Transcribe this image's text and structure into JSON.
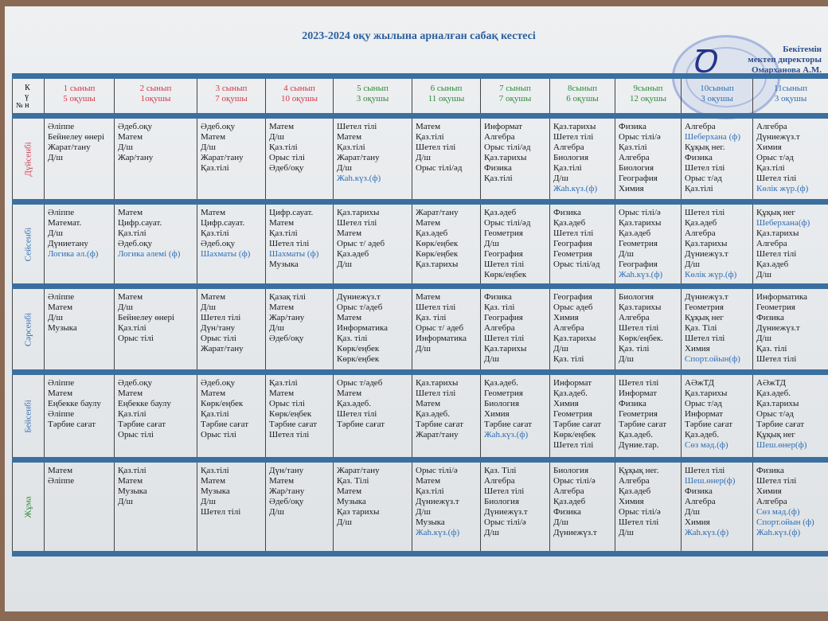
{
  "title": "2023-2024 оқу жылына арналған сабақ кестесі",
  "approval": [
    "Бекітемін",
    "мектеп директоры",
    "Омарханова А.М."
  ],
  "corner": {
    "num": "№",
    "day": "Күн"
  },
  "colors": {
    "red": "#d1394a",
    "green": "#2f8a3a",
    "blue": "#2e6db3",
    "bar": "#3a6fa0"
  },
  "classes": [
    {
      "name": "1 сынып",
      "students": "5 оқушы",
      "color": "#d1394a"
    },
    {
      "name": "2 сынып",
      "students": "1оқушы",
      "color": "#d1394a"
    },
    {
      "name": "3 сынып",
      "students": "7 оқушы",
      "color": "#d1394a"
    },
    {
      "name": "4 сынып",
      "students": "10 оқушы",
      "color": "#d1394a"
    },
    {
      "name": "5 сынып",
      "students": "3 оқушы",
      "color": "#2f8a3a"
    },
    {
      "name": "6 сынып",
      "students": "11 оқушы",
      "color": "#2f8a3a"
    },
    {
      "name": "7 сынып",
      "students": "7 оқушы",
      "color": "#2f8a3a"
    },
    {
      "name": "8сынып",
      "students": "6 оқушы",
      "color": "#2f8a3a"
    },
    {
      "name": "9сынып",
      "students": "12 оқушы",
      "color": "#2f8a3a"
    },
    {
      "name": "10сынып",
      "students": "3 оқушы",
      "color": "#2e6db3"
    },
    {
      "name": "11сынып",
      "students": "3 оқушы",
      "color": "#2e6db3"
    }
  ],
  "days": [
    {
      "name": "Дүйсенбі",
      "color": "#d1394a",
      "cells": [
        [
          "Әліппе",
          "Бейнелеу өнері",
          "Жарат/тану",
          "Д/ш"
        ],
        [
          "Әдеб.оқу",
          "Матем",
          "Д/ш",
          "Жар/тану"
        ],
        [
          "Әдеб.оқу",
          "Матем",
          "Д/ш",
          "Жарат/тану",
          "Қаз.тілі"
        ],
        [
          "Матем",
          "Д/ш",
          "Қаз.тілі",
          "Орыс тілі",
          "Әдеб/оқу"
        ],
        [
          "Шетел тілі",
          "Матем",
          "Қаз.тілі",
          "Жарат/тану",
          "Д/ш",
          "Жаh.күз.(ф)"
        ],
        [
          "Матем",
          "Қаз.тілі",
          "Шетел тілі",
          "Д/ш",
          "Орыс тілі/әд"
        ],
        [
          "Информат",
          "Алгебра",
          "Орыс тілі/әд",
          "Қаз.тарихы",
          "Физика",
          "Қаз.тілі"
        ],
        [
          "Қаз.тарихы",
          "Шетел тілі",
          "Алгебра",
          "Биология",
          "Қаз.тілі",
          "Д/ш",
          "Жаh.күз.(ф)"
        ],
        [
          "Физика",
          "Орыс тілі/ә",
          "Қаз.тілі",
          "Алгебра",
          "Биология",
          "География",
          "Химия"
        ],
        [
          "Алгебра",
          "Шеберхана (ф)",
          "Құқық нег.",
          "Физика",
          "Шетел тілі",
          "Орыс т/әд",
          "Қаз.тілі"
        ],
        [
          "Алгебра",
          "Дүниежүз.т",
          "Химия",
          "Орыс т/әд",
          "Қаз.тілі",
          "Шетел тілі",
          "Көлік жүр.(ф)"
        ]
      ]
    },
    {
      "name": "Сейсенбі",
      "color": "#2e6db3",
      "cells": [
        [
          "Әліппе",
          "Математ.",
          "Д/ш",
          "Дүниетану",
          "Логика әл.(ф)"
        ],
        [
          "Матем",
          "Цифр.сауат.",
          "Қаз.тілі",
          "Әдеб.оқу",
          "Логика әлемі (ф)"
        ],
        [
          "Матем",
          "Цифр.сауат.",
          "Қаз.тілі",
          "Әдеб.оқу",
          "Шахматы (ф)"
        ],
        [
          "Цифр.сауат.",
          "Матем",
          "Қаз.тілі",
          "Шетел тілі",
          "Шахматы (ф)",
          "Музыка"
        ],
        [
          "Қаз.тарихы",
          "Шетел тілі",
          "Матем",
          "Орыс т/ әдеб",
          "Қаз.әдеб",
          "Д/ш"
        ],
        [
          "Жарат/тану",
          "Матем",
          "Қаз.әдеб",
          "Көрк/еңбек",
          "Көрк/еңбек",
          "Қаз.тарихы"
        ],
        [
          "Қаз.әдеб",
          "Орыс тілі/әд",
          "Геометрия",
          "Д/ш",
          "География",
          "Шетел тілі",
          "Көрк/еңбек"
        ],
        [
          "Физика",
          "Қаз.әдеб",
          "Шетел тілі",
          "География",
          "Геометрия",
          "Орыс тілі/әд"
        ],
        [
          "Орыс тілі/ә",
          "Қаз.тарихы",
          "Қаз.әдеб",
          "Геометрия",
          "Д/ш",
          "География",
          "Жаh.күз.(ф)"
        ],
        [
          "Шетел тілі",
          "Қаз.әдеб",
          "Алгебра",
          "Қаз.тарихы",
          "Дүниежүз.т",
          "Д/ш",
          "Көлік жүр.(ф)"
        ],
        [
          "Құқық нег",
          "Шеберхана(ф)",
          "Қаз.тарихы",
          "Алгебра",
          "Шетел тілі",
          "Қаз.әдеб",
          "Д/ш"
        ]
      ]
    },
    {
      "name": "Сәрсенбі",
      "color": "#2e6db3",
      "cells": [
        [
          "Әліппе",
          "Матем",
          "Д/ш",
          "Музыка"
        ],
        [
          "Матем",
          "Д/ш",
          "Бейнелеу өнері",
          "Қаз.тілі",
          "Орыс тілі"
        ],
        [
          "Матем",
          "Д/ш",
          "Шетел тілі",
          "Дүн/тану",
          "Орыс тілі",
          "Жарат/тану"
        ],
        [
          "Қазақ тілі",
          "Матем",
          "Жар/тану",
          "Д/ш",
          "Әдеб/оқу"
        ],
        [
          "Дүниежүз.т",
          "Орыс т/әдеб",
          "Матем",
          "Информатика",
          "Қаз. тілі",
          "Көрк/еңбек",
          "Көрк/еңбек"
        ],
        [
          "Матем",
          "Шетел тілі",
          "Қаз. тілі",
          "Орыс т/ әдеб",
          "Информатика",
          "Д/ш"
        ],
        [
          "Физика",
          "Қаз. тілі",
          "География",
          "Алгебра",
          "Шетел тілі",
          "Қаз.тарихы",
          "Д/ш"
        ],
        [
          "География",
          "Орыс әдеб",
          "Химия",
          "Алгебра",
          "Қаз.тарихы",
          "Д/ш",
          "Қаз. тілі"
        ],
        [
          "Биология",
          "Қаз.тарихы",
          "Алгебра",
          "Шетел тілі",
          "Көрк/еңбек.",
          "Қаз. тілі",
          "Д/ш"
        ],
        [
          "Дүниежүз.т",
          "Геометрия",
          "Құқық нег",
          "Қаз. Тілі",
          "Шетел тілі",
          "Химия",
          "Спорт.ойын(ф)"
        ],
        [
          "Информатика",
          "Геометрия",
          "Физика",
          "Дүниежүз.т",
          "Д/ш",
          "Қаз. тілі",
          "Шетел тілі"
        ]
      ]
    },
    {
      "name": "Бейсенбі",
      "color": "#2e6db3",
      "cells": [
        [
          "Әліппе",
          "Матем",
          "Еңбекке баулу",
          "Әліппе",
          "Тәрбие сағат"
        ],
        [
          "Әдеб.оқу",
          "Матем",
          "Еңбекке баулу",
          "Қаз.тілі",
          "Тәрбие сағат",
          "Орыс тілі"
        ],
        [
          "Әдеб.оқу",
          "Матем",
          "Көрк/еңбек",
          "Қаз.тілі",
          "Тәрбие сағат",
          "Орыс тілі"
        ],
        [
          "Қаз.тілі",
          "Матем",
          "Орыс тілі",
          "Көрк/еңбек",
          "Тәрбие сағат",
          "Шетел тілі"
        ],
        [
          "Орыс т/әдеб",
          "Матем",
          "Қаз.әдеб.",
          "Шетел тілі",
          "Тәрбие сағат"
        ],
        [
          "Қаз.тарихы",
          "Шетел тілі",
          "Матем",
          "Қаз.әдеб.",
          "Тәрбие сағат",
          "Жарат/тану"
        ],
        [
          "Қаз.әдеб.",
          "Геометрия",
          "Биология",
          "Химия",
          "Тәрбие сағат",
          "Жаh.күз.(ф)"
        ],
        [
          "Информат",
          "Қаз.әдеб.",
          "Химия",
          "Геометрия",
          "Тәрбие сағат",
          "Көрк/еңбек",
          "Шетел тілі"
        ],
        [
          "Шетел тілі",
          "Информат",
          "Физика",
          "Геометрия",
          "Тәрбие сағат",
          "Қаз.әдеб.",
          "Дүние.тар."
        ],
        [
          "АӘжТД",
          "Қаз.тарихы",
          "Орыс т/әд",
          "Информат",
          "Тәрбие сағат",
          "Қаз.әдеб.",
          "Сөз мәд.(ф)"
        ],
        [
          "АӘжТД",
          "Қаз.әдеб.",
          "Қаз.тарихы",
          "Орыс т/әд",
          "Тәрбие сағат",
          "Құқық нег",
          "Шеш.өнер(ф)"
        ]
      ]
    },
    {
      "name": "Жұма",
      "color": "#2f8a3a",
      "cells": [
        [
          "Матем",
          "Әліппе"
        ],
        [
          "Қаз.тілі",
          "Матем",
          "Музыка",
          "Д/ш"
        ],
        [
          "Қаз.тілі",
          "Матем",
          "Музыка",
          "Д/ш",
          "Шетел тілі"
        ],
        [
          "Дүн/тану",
          "Матем",
          "Жар/тану",
          "Әдеб/оқу",
          "Д/ш"
        ],
        [
          "Жарат/тану",
          "Қаз. Тілі",
          "Матем",
          "Музыка",
          "Қаз тарихы",
          "Д/ш"
        ],
        [
          "Орыс тілі/ә",
          "Матем",
          "Қаз.тілі",
          "Дүниежүз.т",
          "Д/ш",
          "Музыка",
          "Жаh.күз.(ф)"
        ],
        [
          "Қаз. Тілі",
          "Алгебра",
          "Шетел тілі",
          "Биология",
          "Дүниежүз.т",
          "Орыс тілі/ә",
          "Д/ш"
        ],
        [
          "Биология",
          "Орыс тілі/ә",
          "Алгебра",
          "Қаз.әдеб",
          "Физика",
          "Д/ш",
          "Дүниежүз.т"
        ],
        [
          "Құқық нег.",
          "Алгебра",
          "Қаз.әдеб",
          "Химия",
          "Орыс тілі/ә",
          "Шетел тілі",
          "Д/ш"
        ],
        [
          "Шетел тілі",
          "Шеш.өнер(ф)",
          "Физика",
          "Алгебра",
          "Д/ш",
          "Химия",
          "Жаh.күз.(ф)"
        ],
        [
          "Физика",
          "Шетел тілі",
          "Химия",
          "Алгебра",
          "Сөз мәд.(ф)",
          "Спорт.ойын (ф)",
          "Жаh.күз.(ф)"
        ]
      ]
    }
  ]
}
